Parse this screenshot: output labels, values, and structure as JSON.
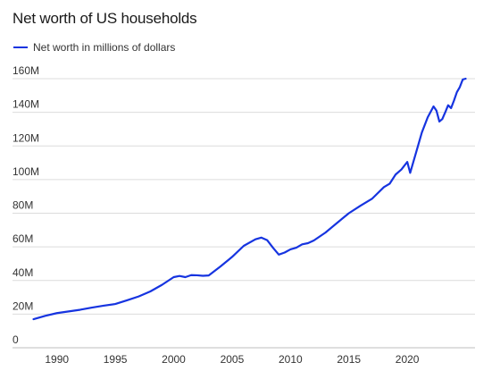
{
  "chart_data": {
    "type": "line",
    "title": "Net worth of US households",
    "xlabel": "",
    "ylabel": "",
    "xlim": [
      1986.2,
      2025.8
    ],
    "ylim": [
      0,
      160
    ],
    "y_ticks": [
      {
        "value": 0,
        "label": "0"
      },
      {
        "value": 20,
        "label": "20M"
      },
      {
        "value": 40,
        "label": "40M"
      },
      {
        "value": 60,
        "label": "60M"
      },
      {
        "value": 80,
        "label": "80M"
      },
      {
        "value": 100,
        "label": "100M"
      },
      {
        "value": 120,
        "label": "120M"
      },
      {
        "value": 140,
        "label": "140M"
      },
      {
        "value": 160,
        "label": "160M"
      }
    ],
    "x_ticks": [
      {
        "value": 1990,
        "label": "1990"
      },
      {
        "value": 1995,
        "label": "1995"
      },
      {
        "value": 2000,
        "label": "2000"
      },
      {
        "value": 2005,
        "label": "2005"
      },
      {
        "value": 2010,
        "label": "2010"
      },
      {
        "value": 2015,
        "label": "2015"
      },
      {
        "value": 2020,
        "label": "2020"
      }
    ],
    "grid": true,
    "legend_position": "top-left",
    "series": [
      {
        "name": "Net worth in millions of dollars",
        "color": "#1634e0",
        "points": [
          [
            1988.0,
            17.0
          ],
          [
            1989.0,
            19.0
          ],
          [
            1990.0,
            20.6
          ],
          [
            1991.0,
            21.6
          ],
          [
            1992.0,
            22.6
          ],
          [
            1993.0,
            23.9
          ],
          [
            1994.0,
            25.0
          ],
          [
            1995.0,
            26.0
          ],
          [
            1996.0,
            28.2
          ],
          [
            1997.0,
            30.5
          ],
          [
            1998.0,
            33.5
          ],
          [
            1999.0,
            37.4
          ],
          [
            2000.0,
            42.0
          ],
          [
            2000.5,
            42.7
          ],
          [
            2001.0,
            42.0
          ],
          [
            2001.5,
            43.2
          ],
          [
            2002.0,
            43.1
          ],
          [
            2002.5,
            42.8
          ],
          [
            2003.0,
            43.0
          ],
          [
            2004.0,
            48.3
          ],
          [
            2005.0,
            54.0
          ],
          [
            2006.0,
            60.6
          ],
          [
            2007.0,
            64.5
          ],
          [
            2007.5,
            65.5
          ],
          [
            2008.0,
            64.0
          ],
          [
            2008.5,
            59.5
          ],
          [
            2009.0,
            55.4
          ],
          [
            2009.5,
            56.6
          ],
          [
            2010.0,
            58.5
          ],
          [
            2010.5,
            59.5
          ],
          [
            2011.0,
            61.5
          ],
          [
            2011.5,
            62.2
          ],
          [
            2012.0,
            63.8
          ],
          [
            2013.0,
            68.5
          ],
          [
            2014.0,
            74.3
          ],
          [
            2015.0,
            80.0
          ],
          [
            2016.0,
            84.5
          ],
          [
            2017.0,
            88.7
          ],
          [
            2018.0,
            95.5
          ],
          [
            2018.5,
            97.6
          ],
          [
            2019.0,
            103.0
          ],
          [
            2019.5,
            106.0
          ],
          [
            2020.0,
            110.5
          ],
          [
            2020.25,
            104.0
          ],
          [
            2020.75,
            116.0
          ],
          [
            2021.25,
            128.0
          ],
          [
            2021.75,
            137.0
          ],
          [
            2022.25,
            143.5
          ],
          [
            2022.5,
            141.0
          ],
          [
            2022.75,
            134.5
          ],
          [
            2023.0,
            136.0
          ],
          [
            2023.25,
            140.0
          ],
          [
            2023.5,
            144.2
          ],
          [
            2023.75,
            142.5
          ],
          [
            2024.0,
            147.0
          ],
          [
            2024.25,
            152.0
          ],
          [
            2024.5,
            155.0
          ],
          [
            2024.75,
            159.5
          ],
          [
            2025.0,
            160.0
          ]
        ]
      }
    ]
  }
}
